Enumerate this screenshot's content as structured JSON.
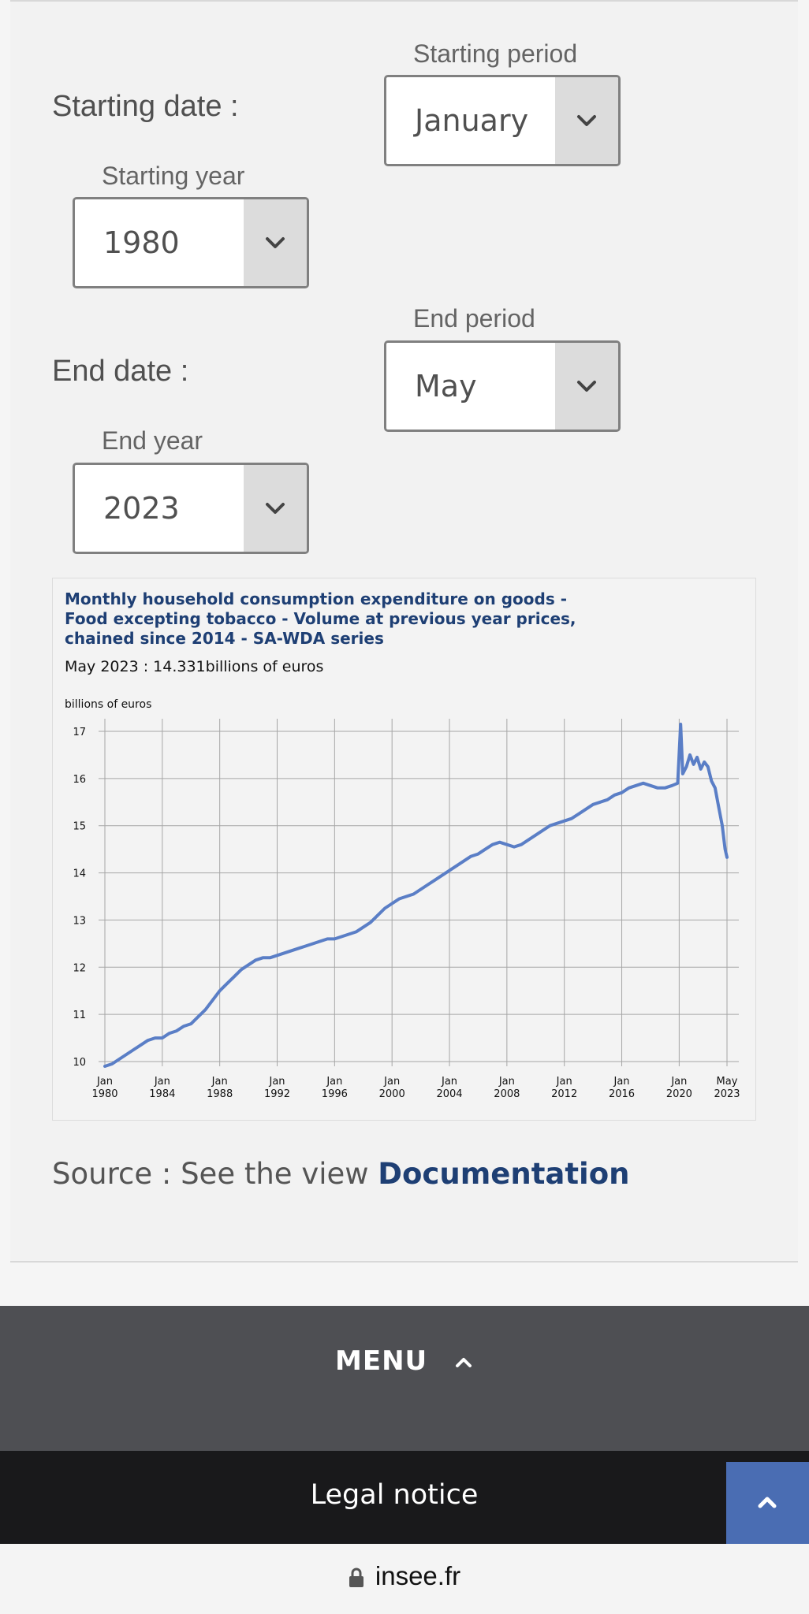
{
  "form": {
    "start_date_label": "Starting date :",
    "start_period_label": "Starting period",
    "start_period_value": "January",
    "start_year_label": "Starting year",
    "start_year_value": "1980",
    "end_date_label": "End date :",
    "end_period_label": "End period",
    "end_period_value": "May",
    "end_year_label": "End year",
    "end_year_value": "2023"
  },
  "chart_header": {
    "title": "Monthly household consumption expenditure on goods - Food excepting tobacco - Volume at previous year prices, chained since 2014 - SA-WDA series",
    "last_value": "May 2023 : 14.331billions of euros"
  },
  "chart_data": {
    "type": "line",
    "ylabel": "billions of euros",
    "ylim": [
      10,
      17
    ],
    "yticks": [
      10,
      11,
      12,
      13,
      14,
      15,
      16,
      17
    ],
    "xticks": [
      {
        "month": "Jan",
        "year": "1980",
        "t": 1980.0
      },
      {
        "month": "Jan",
        "year": "1984",
        "t": 1984.0
      },
      {
        "month": "Jan",
        "year": "1988",
        "t": 1988.0
      },
      {
        "month": "Jan",
        "year": "1992",
        "t": 1992.0
      },
      {
        "month": "Jan",
        "year": "1996",
        "t": 1996.0
      },
      {
        "month": "Jan",
        "year": "2000",
        "t": 2000.0
      },
      {
        "month": "Jan",
        "year": "2004",
        "t": 2004.0
      },
      {
        "month": "Jan",
        "year": "2008",
        "t": 2008.0
      },
      {
        "month": "Jan",
        "year": "2012",
        "t": 2012.0
      },
      {
        "month": "Jan",
        "year": "2016",
        "t": 2016.0
      },
      {
        "month": "Jan",
        "year": "2020",
        "t": 2020.0
      },
      {
        "month": "May",
        "year": "2023",
        "t": 2023.33
      }
    ],
    "grid": true,
    "series": [
      {
        "color": "#5a7ec6",
        "points": [
          [
            1980.0,
            9.9
          ],
          [
            1980.5,
            9.95
          ],
          [
            1981.0,
            10.05
          ],
          [
            1981.5,
            10.15
          ],
          [
            1982.0,
            10.25
          ],
          [
            1982.5,
            10.35
          ],
          [
            1983.0,
            10.45
          ],
          [
            1983.5,
            10.5
          ],
          [
            1984.0,
            10.5
          ],
          [
            1984.5,
            10.6
          ],
          [
            1985.0,
            10.65
          ],
          [
            1985.5,
            10.75
          ],
          [
            1986.0,
            10.8
          ],
          [
            1986.5,
            10.95
          ],
          [
            1987.0,
            11.1
          ],
          [
            1987.5,
            11.3
          ],
          [
            1988.0,
            11.5
          ],
          [
            1988.5,
            11.65
          ],
          [
            1989.0,
            11.8
          ],
          [
            1989.5,
            11.95
          ],
          [
            1990.0,
            12.05
          ],
          [
            1990.5,
            12.15
          ],
          [
            1991.0,
            12.2
          ],
          [
            1991.5,
            12.2
          ],
          [
            1992.0,
            12.25
          ],
          [
            1992.5,
            12.3
          ],
          [
            1993.0,
            12.35
          ],
          [
            1993.5,
            12.4
          ],
          [
            1994.0,
            12.45
          ],
          [
            1994.5,
            12.5
          ],
          [
            1995.0,
            12.55
          ],
          [
            1995.5,
            12.6
          ],
          [
            1996.0,
            12.6
          ],
          [
            1996.5,
            12.65
          ],
          [
            1997.0,
            12.7
          ],
          [
            1997.5,
            12.75
          ],
          [
            1998.0,
            12.85
          ],
          [
            1998.5,
            12.95
          ],
          [
            1999.0,
            13.1
          ],
          [
            1999.5,
            13.25
          ],
          [
            2000.0,
            13.35
          ],
          [
            2000.5,
            13.45
          ],
          [
            2001.0,
            13.5
          ],
          [
            2001.5,
            13.55
          ],
          [
            2002.0,
            13.65
          ],
          [
            2002.5,
            13.75
          ],
          [
            2003.0,
            13.85
          ],
          [
            2003.5,
            13.95
          ],
          [
            2004.0,
            14.05
          ],
          [
            2004.5,
            14.15
          ],
          [
            2005.0,
            14.25
          ],
          [
            2005.5,
            14.35
          ],
          [
            2006.0,
            14.4
          ],
          [
            2006.5,
            14.5
          ],
          [
            2007.0,
            14.6
          ],
          [
            2007.5,
            14.65
          ],
          [
            2008.0,
            14.6
          ],
          [
            2008.5,
            14.55
          ],
          [
            2009.0,
            14.6
          ],
          [
            2009.5,
            14.7
          ],
          [
            2010.0,
            14.8
          ],
          [
            2010.5,
            14.9
          ],
          [
            2011.0,
            15.0
          ],
          [
            2011.5,
            15.05
          ],
          [
            2012.0,
            15.1
          ],
          [
            2012.5,
            15.15
          ],
          [
            2013.0,
            15.25
          ],
          [
            2013.5,
            15.35
          ],
          [
            2014.0,
            15.45
          ],
          [
            2014.5,
            15.5
          ],
          [
            2015.0,
            15.55
          ],
          [
            2015.5,
            15.65
          ],
          [
            2016.0,
            15.7
          ],
          [
            2016.5,
            15.8
          ],
          [
            2017.0,
            15.85
          ],
          [
            2017.5,
            15.9
          ],
          [
            2018.0,
            15.85
          ],
          [
            2018.5,
            15.8
          ],
          [
            2019.0,
            15.8
          ],
          [
            2019.5,
            15.85
          ],
          [
            2019.9,
            15.9
          ],
          [
            2020.1,
            17.15
          ],
          [
            2020.25,
            16.1
          ],
          [
            2020.5,
            16.25
          ],
          [
            2020.75,
            16.5
          ],
          [
            2021.0,
            16.3
          ],
          [
            2021.25,
            16.45
          ],
          [
            2021.5,
            16.2
          ],
          [
            2021.75,
            16.35
          ],
          [
            2022.0,
            16.25
          ],
          [
            2022.25,
            15.95
          ],
          [
            2022.5,
            15.8
          ],
          [
            2022.75,
            15.4
          ],
          [
            2023.0,
            15.0
          ],
          [
            2023.2,
            14.5
          ],
          [
            2023.33,
            14.33
          ]
        ]
      }
    ]
  },
  "source": {
    "prefix": "Source : See the view ",
    "link": "Documentation"
  },
  "footer": {
    "menu_label": "MENU",
    "legal_label": "Legal notice"
  },
  "browser": {
    "url": "insee.fr"
  }
}
